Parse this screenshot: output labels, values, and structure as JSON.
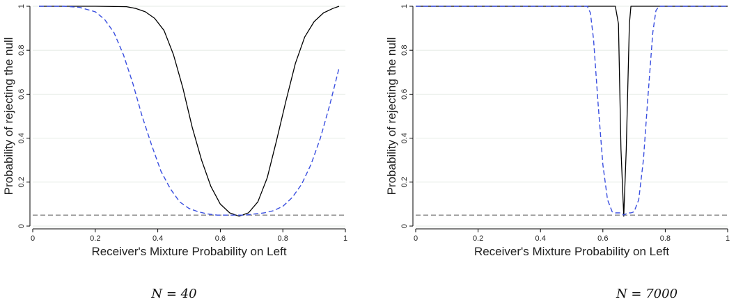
{
  "chart_data": [
    {
      "type": "line",
      "caption": "N = 40",
      "xlabel": "Receiver's Mixture Probability on Left",
      "ylabel": "Probability of rejecting the null",
      "xlim": [
        0,
        1
      ],
      "ylim": [
        0,
        1
      ],
      "xticks": [
        0,
        0.2,
        0.4,
        0.6,
        0.8,
        1
      ],
      "xtick_labels": [
        "0",
        "0.2",
        "0.4",
        "0.6",
        "0.8",
        "1"
      ],
      "yticks": [
        0,
        0.2,
        0.4,
        0.6,
        0.8,
        1
      ],
      "ytick_labels": [
        "0",
        "0.2",
        "0.4",
        "0.6",
        "0.8",
        "1"
      ],
      "grid": "horizontal",
      "reference_line": 0.05,
      "series": [
        {
          "style": "solid",
          "color": "#000000",
          "x": [
            0.02,
            0.2,
            0.3,
            0.33,
            0.36,
            0.39,
            0.42,
            0.45,
            0.48,
            0.51,
            0.54,
            0.57,
            0.6,
            0.63,
            0.66,
            0.69,
            0.72,
            0.75,
            0.78,
            0.81,
            0.84,
            0.87,
            0.9,
            0.93,
            0.96,
            0.98
          ],
          "y": [
            1.0,
            1.0,
            0.998,
            0.99,
            0.975,
            0.945,
            0.89,
            0.78,
            0.63,
            0.45,
            0.3,
            0.18,
            0.1,
            0.06,
            0.045,
            0.06,
            0.11,
            0.22,
            0.39,
            0.57,
            0.74,
            0.86,
            0.93,
            0.97,
            0.99,
            1.0
          ]
        },
        {
          "style": "dashed",
          "color": "#3a4fe0",
          "x": [
            0.02,
            0.1,
            0.15,
            0.2,
            0.23,
            0.26,
            0.29,
            0.32,
            0.35,
            0.38,
            0.41,
            0.44,
            0.47,
            0.5,
            0.53,
            0.56,
            0.59,
            0.62,
            0.65,
            0.68,
            0.71,
            0.74,
            0.77,
            0.8,
            0.83,
            0.86,
            0.89,
            0.92,
            0.95,
            0.98
          ],
          "y": [
            1.0,
            1.0,
            0.995,
            0.975,
            0.94,
            0.88,
            0.78,
            0.65,
            0.5,
            0.37,
            0.25,
            0.17,
            0.11,
            0.08,
            0.065,
            0.055,
            0.05,
            0.05,
            0.05,
            0.05,
            0.055,
            0.06,
            0.07,
            0.09,
            0.13,
            0.19,
            0.28,
            0.4,
            0.55,
            0.72
          ]
        }
      ]
    },
    {
      "type": "line",
      "caption": "N = 7000",
      "xlabel": "Receiver's Mixture Probability on Left",
      "ylabel": "Probability of rejecting the null",
      "xlim": [
        0,
        1
      ],
      "ylim": [
        0,
        1
      ],
      "xticks": [
        0,
        0.2,
        0.4,
        0.6,
        0.8,
        1
      ],
      "xtick_labels": [
        "0",
        "0.2",
        "0.4",
        "0.6",
        "0.8",
        "1"
      ],
      "yticks": [
        0,
        0.2,
        0.4,
        0.6,
        0.8,
        1
      ],
      "ytick_labels": [
        "0",
        "0.2",
        "0.4",
        "0.6",
        "0.8",
        "1"
      ],
      "grid": "horizontal",
      "reference_line": 0.05,
      "series": [
        {
          "style": "solid",
          "color": "#000000",
          "x": [
            0.0,
            0.6,
            0.64,
            0.65,
            0.658,
            0.667,
            0.675,
            0.685,
            0.69,
            0.7,
            0.75,
            1.0
          ],
          "y": [
            1.0,
            1.0,
            1.0,
            0.92,
            0.35,
            0.045,
            0.35,
            0.92,
            1.0,
            1.0,
            1.0,
            1.0
          ],
          "note": ""
        },
        {
          "style": "dashed",
          "color": "#3a4fe0",
          "x": [
            0.0,
            0.55,
            0.56,
            0.57,
            0.585,
            0.6,
            0.615,
            0.63,
            0.64,
            0.66,
            0.667,
            0.68,
            0.69,
            0.7,
            0.715,
            0.73,
            0.745,
            0.76,
            0.77,
            0.78,
            1.0
          ],
          "y": [
            1.0,
            1.0,
            0.97,
            0.85,
            0.55,
            0.28,
            0.12,
            0.065,
            0.06,
            0.06,
            0.05,
            0.06,
            0.06,
            0.065,
            0.12,
            0.3,
            0.6,
            0.88,
            0.98,
            1.0,
            1.0
          ]
        }
      ]
    }
  ]
}
